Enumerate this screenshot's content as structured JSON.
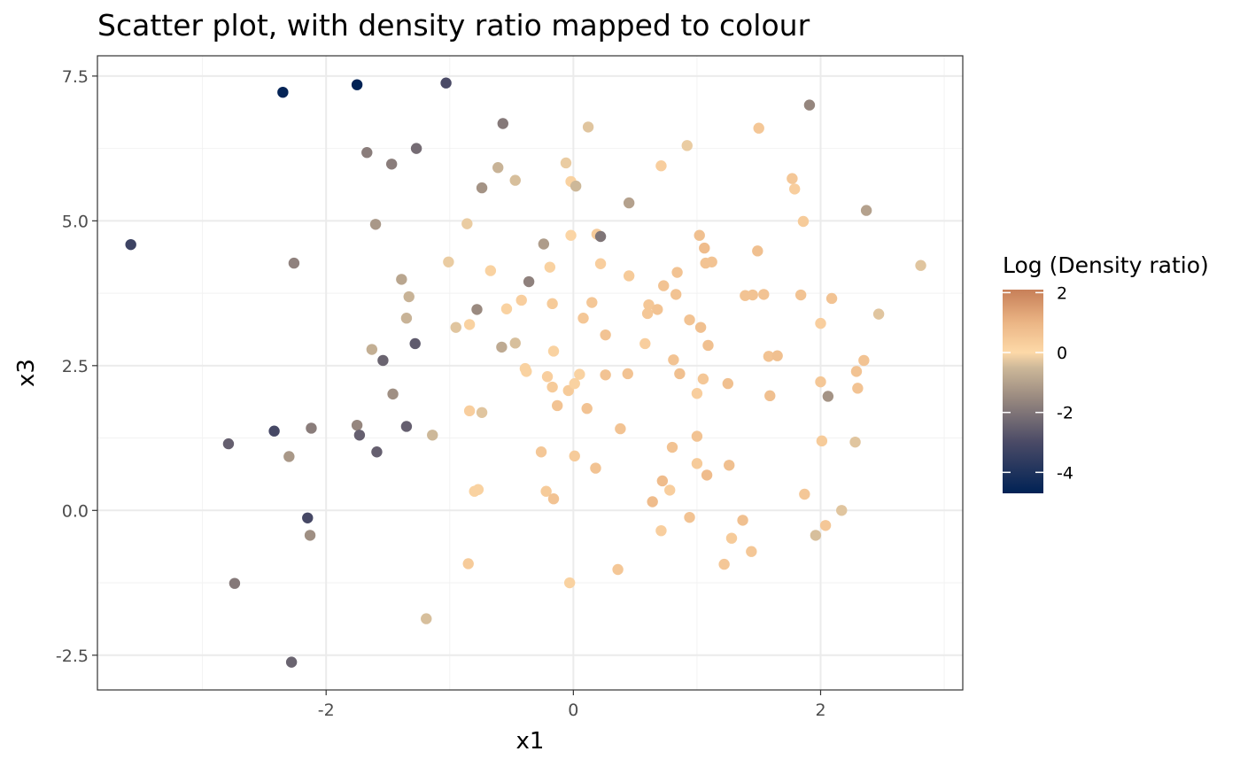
{
  "chart_data": {
    "type": "scatter",
    "title": "Scatter plot, with density ratio mapped to colour",
    "xlabel": "x1",
    "ylabel": "x3",
    "xlim": [
      -3.85,
      3.15
    ],
    "ylim": [
      -3.1,
      7.85
    ],
    "x_ticks": [
      -2,
      0,
      2
    ],
    "x_tick_labels": [
      "-2",
      "0",
      "2"
    ],
    "y_ticks": [
      -2.5,
      0.0,
      2.5,
      5.0,
      7.5
    ],
    "y_tick_labels": [
      "-2.5",
      "0.0",
      "2.5",
      "5.0",
      "7.5"
    ],
    "grid": true,
    "legend": {
      "title": "Log (Density ratio)",
      "placement": "right",
      "range": [
        -4.7,
        2.1
      ],
      "ticks": [
        2,
        0,
        -2,
        -4
      ],
      "tick_labels": [
        "2",
        "0",
        "-2",
        "-4"
      ],
      "colors": [
        {
          "value": -4.7,
          "color": "#002255"
        },
        {
          "value": -3.0,
          "color": "#4a4a66"
        },
        {
          "value": -1.5,
          "color": "#9a8a80"
        },
        {
          "value": -0.5,
          "color": "#cdb899"
        },
        {
          "value": 0.0,
          "color": "#fdd9a8"
        },
        {
          "value": 1.0,
          "color": "#ebb585"
        },
        {
          "value": 2.1,
          "color": "#c77f58"
        }
      ]
    },
    "points": [
      {
        "x": -2.35,
        "y": 7.22,
        "c": -4.6
      },
      {
        "x": -1.75,
        "y": 7.35,
        "c": -4.7
      },
      {
        "x": -1.03,
        "y": 7.38,
        "c": -3.0
      },
      {
        "x": -0.57,
        "y": 6.68,
        "c": -1.9
      },
      {
        "x": 0.12,
        "y": 6.62,
        "c": -0.3
      },
      {
        "x": 1.91,
        "y": 7.0,
        "c": -1.6
      },
      {
        "x": -1.67,
        "y": 6.18,
        "c": -1.8
      },
      {
        "x": -1.47,
        "y": 5.98,
        "c": -1.8
      },
      {
        "x": -1.27,
        "y": 6.25,
        "c": -2.2
      },
      {
        "x": -0.61,
        "y": 5.92,
        "c": -0.6
      },
      {
        "x": -0.47,
        "y": 5.7,
        "c": -0.4
      },
      {
        "x": -0.74,
        "y": 5.57,
        "c": -1.3
      },
      {
        "x": -0.06,
        "y": 6.0,
        "c": -0.2
      },
      {
        "x": -0.02,
        "y": 5.68,
        "c": 0.2
      },
      {
        "x": 0.02,
        "y": 5.6,
        "c": -0.5
      },
      {
        "x": 0.71,
        "y": 5.95,
        "c": 0.3
      },
      {
        "x": 0.92,
        "y": 6.3,
        "c": -0.2
      },
      {
        "x": 1.5,
        "y": 6.6,
        "c": 0.5
      },
      {
        "x": 1.77,
        "y": 5.73,
        "c": 0.5
      },
      {
        "x": 1.79,
        "y": 5.55,
        "c": 0.3
      },
      {
        "x": 0.45,
        "y": 5.31,
        "c": -1.0
      },
      {
        "x": 2.37,
        "y": 5.18,
        "c": -1.0
      },
      {
        "x": -3.58,
        "y": 4.59,
        "c": -3.3
      },
      {
        "x": -2.26,
        "y": 4.27,
        "c": -1.7
      },
      {
        "x": -1.6,
        "y": 4.94,
        "c": -1.2
      },
      {
        "x": -0.86,
        "y": 4.95,
        "c": -0.2
      },
      {
        "x": -0.24,
        "y": 4.6,
        "c": -1.1
      },
      {
        "x": -0.02,
        "y": 4.75,
        "c": 0.1
      },
      {
        "x": 0.19,
        "y": 4.77,
        "c": 0.4
      },
      {
        "x": 0.22,
        "y": 4.73,
        "c": -2.0
      },
      {
        "x": 1.86,
        "y": 4.99,
        "c": 0.4
      },
      {
        "x": 1.02,
        "y": 4.75,
        "c": 0.7
      },
      {
        "x": 1.06,
        "y": 4.53,
        "c": 0.8
      },
      {
        "x": 1.49,
        "y": 4.48,
        "c": 0.7
      },
      {
        "x": 1.07,
        "y": 4.27,
        "c": 0.6
      },
      {
        "x": 1.12,
        "y": 4.29,
        "c": 0.6
      },
      {
        "x": 2.81,
        "y": 4.23,
        "c": -0.3
      },
      {
        "x": -1.01,
        "y": 4.29,
        "c": -0.2
      },
      {
        "x": -0.67,
        "y": 4.14,
        "c": 0.2
      },
      {
        "x": -0.19,
        "y": 4.2,
        "c": 0.2
      },
      {
        "x": 0.22,
        "y": 4.26,
        "c": 0.3
      },
      {
        "x": 0.45,
        "y": 4.05,
        "c": 0.4
      },
      {
        "x": 0.84,
        "y": 4.11,
        "c": 0.6
      },
      {
        "x": -1.39,
        "y": 3.99,
        "c": -0.9
      },
      {
        "x": -1.33,
        "y": 3.69,
        "c": -0.6
      },
      {
        "x": -0.36,
        "y": 3.95,
        "c": -1.7
      },
      {
        "x": -0.42,
        "y": 3.63,
        "c": 0.3
      },
      {
        "x": -0.17,
        "y": 3.57,
        "c": 0.4
      },
      {
        "x": 0.15,
        "y": 3.59,
        "c": 0.5
      },
      {
        "x": 0.61,
        "y": 3.55,
        "c": 0.5
      },
      {
        "x": 0.73,
        "y": 3.88,
        "c": 0.6
      },
      {
        "x": 0.83,
        "y": 3.73,
        "c": 0.6
      },
      {
        "x": 1.39,
        "y": 3.71,
        "c": 0.6
      },
      {
        "x": 1.45,
        "y": 3.72,
        "c": 0.6
      },
      {
        "x": 1.54,
        "y": 3.73,
        "c": 0.6
      },
      {
        "x": 1.84,
        "y": 3.72,
        "c": 0.6
      },
      {
        "x": 2.09,
        "y": 3.66,
        "c": 0.6
      },
      {
        "x": 2.47,
        "y": 3.39,
        "c": -0.3
      },
      {
        "x": -1.35,
        "y": 3.32,
        "c": -0.6
      },
      {
        "x": -0.78,
        "y": 3.47,
        "c": -1.5
      },
      {
        "x": -0.54,
        "y": 3.48,
        "c": 0.2
      },
      {
        "x": -0.95,
        "y": 3.16,
        "c": -0.3
      },
      {
        "x": -0.84,
        "y": 3.21,
        "c": 0.2
      },
      {
        "x": 0.08,
        "y": 3.32,
        "c": 0.5
      },
      {
        "x": 0.6,
        "y": 3.4,
        "c": 0.5
      },
      {
        "x": 0.68,
        "y": 3.47,
        "c": 0.6
      },
      {
        "x": 0.94,
        "y": 3.29,
        "c": 0.6
      },
      {
        "x": 1.03,
        "y": 3.16,
        "c": 0.7
      },
      {
        "x": 2.0,
        "y": 3.23,
        "c": 0.3
      },
      {
        "x": -1.63,
        "y": 2.78,
        "c": -0.7
      },
      {
        "x": -1.28,
        "y": 2.88,
        "c": -2.6
      },
      {
        "x": -1.54,
        "y": 2.59,
        "c": -2.4
      },
      {
        "x": -0.58,
        "y": 2.82,
        "c": -0.8
      },
      {
        "x": -0.47,
        "y": 2.89,
        "c": -0.4
      },
      {
        "x": -0.16,
        "y": 2.75,
        "c": 0.2
      },
      {
        "x": 0.26,
        "y": 3.03,
        "c": 0.6
      },
      {
        "x": 0.58,
        "y": 2.88,
        "c": 0.3
      },
      {
        "x": 1.09,
        "y": 2.85,
        "c": 0.7
      },
      {
        "x": 0.81,
        "y": 2.6,
        "c": 0.6
      },
      {
        "x": 1.58,
        "y": 2.66,
        "c": 0.6
      },
      {
        "x": 1.65,
        "y": 2.67,
        "c": 0.7
      },
      {
        "x": 2.35,
        "y": 2.59,
        "c": 0.6
      },
      {
        "x": -0.39,
        "y": 2.45,
        "c": 0.2
      },
      {
        "x": -0.38,
        "y": 2.4,
        "c": 0.2
      },
      {
        "x": -0.21,
        "y": 2.31,
        "c": 0.3
      },
      {
        "x": 0.05,
        "y": 2.35,
        "c": 0.2
      },
      {
        "x": 0.26,
        "y": 2.34,
        "c": 0.6
      },
      {
        "x": 0.44,
        "y": 2.36,
        "c": 0.6
      },
      {
        "x": 0.86,
        "y": 2.36,
        "c": 0.7
      },
      {
        "x": 1.05,
        "y": 2.27,
        "c": 0.5
      },
      {
        "x": 2.29,
        "y": 2.4,
        "c": 0.6
      },
      {
        "x": -1.46,
        "y": 2.01,
        "c": -1.4
      },
      {
        "x": -0.17,
        "y": 2.13,
        "c": 0.4
      },
      {
        "x": -0.04,
        "y": 2.07,
        "c": 0.4
      },
      {
        "x": 0.01,
        "y": 2.19,
        "c": 0.2
      },
      {
        "x": 1.0,
        "y": 2.02,
        "c": 0.3
      },
      {
        "x": 1.25,
        "y": 2.19,
        "c": 0.7
      },
      {
        "x": 1.59,
        "y": 1.98,
        "c": 0.7
      },
      {
        "x": 2.0,
        "y": 2.22,
        "c": 0.5
      },
      {
        "x": 2.06,
        "y": 1.97,
        "c": -1.3
      },
      {
        "x": 2.3,
        "y": 2.11,
        "c": 0.6
      },
      {
        "x": -0.84,
        "y": 1.72,
        "c": 0.3
      },
      {
        "x": -0.74,
        "y": 1.69,
        "c": -0.3
      },
      {
        "x": -0.13,
        "y": 1.81,
        "c": 0.6
      },
      {
        "x": 0.11,
        "y": 1.76,
        "c": 0.6
      },
      {
        "x": -2.79,
        "y": 1.15,
        "c": -2.5
      },
      {
        "x": -2.42,
        "y": 1.37,
        "c": -3.1
      },
      {
        "x": -2.12,
        "y": 1.42,
        "c": -1.8
      },
      {
        "x": -1.75,
        "y": 1.47,
        "c": -1.6
      },
      {
        "x": -1.73,
        "y": 1.3,
        "c": -2.5
      },
      {
        "x": -1.35,
        "y": 1.45,
        "c": -2.5
      },
      {
        "x": -1.14,
        "y": 1.3,
        "c": -0.5
      },
      {
        "x": 0.38,
        "y": 1.41,
        "c": 0.6
      },
      {
        "x": 0.8,
        "y": 1.09,
        "c": 0.6
      },
      {
        "x": 1.0,
        "y": 1.28,
        "c": 0.6
      },
      {
        "x": 2.01,
        "y": 1.2,
        "c": 0.4
      },
      {
        "x": 2.28,
        "y": 1.18,
        "c": -0.3
      },
      {
        "x": -2.3,
        "y": 0.93,
        "c": -1.2
      },
      {
        "x": -1.59,
        "y": 1.01,
        "c": -2.5
      },
      {
        "x": -0.26,
        "y": 1.01,
        "c": 0.5
      },
      {
        "x": 0.01,
        "y": 0.94,
        "c": 0.4
      },
      {
        "x": 0.18,
        "y": 0.73,
        "c": 0.6
      },
      {
        "x": 1.0,
        "y": 0.81,
        "c": 0.4
      },
      {
        "x": 1.26,
        "y": 0.78,
        "c": 0.7
      },
      {
        "x": 1.08,
        "y": 0.61,
        "c": 0.8
      },
      {
        "x": 0.72,
        "y": 0.51,
        "c": 0.8
      },
      {
        "x": 0.78,
        "y": 0.35,
        "c": 0.3
      },
      {
        "x": -0.8,
        "y": 0.33,
        "c": 0.2
      },
      {
        "x": -0.77,
        "y": 0.36,
        "c": 0.2
      },
      {
        "x": -0.22,
        "y": 0.33,
        "c": 0.4
      },
      {
        "x": -0.16,
        "y": 0.2,
        "c": 0.6
      },
      {
        "x": 0.64,
        "y": 0.15,
        "c": 0.8
      },
      {
        "x": 1.87,
        "y": 0.28,
        "c": 0.5
      },
      {
        "x": -2.15,
        "y": -0.13,
        "c": -3.1
      },
      {
        "x": 0.94,
        "y": -0.12,
        "c": 0.6
      },
      {
        "x": 1.37,
        "y": -0.17,
        "c": 0.7
      },
      {
        "x": 2.17,
        "y": 0.0,
        "c": -0.3
      },
      {
        "x": -2.13,
        "y": -0.43,
        "c": -1.4
      },
      {
        "x": 0.71,
        "y": -0.35,
        "c": 0.3
      },
      {
        "x": 1.28,
        "y": -0.48,
        "c": 0.4
      },
      {
        "x": 1.96,
        "y": -0.43,
        "c": -0.4
      },
      {
        "x": 2.04,
        "y": -0.26,
        "c": 0.5
      },
      {
        "x": 1.44,
        "y": -0.71,
        "c": 0.5
      },
      {
        "x": -0.85,
        "y": -0.92,
        "c": 0.4
      },
      {
        "x": 1.22,
        "y": -0.93,
        "c": 0.5
      },
      {
        "x": 0.36,
        "y": -1.02,
        "c": 0.5
      },
      {
        "x": -0.03,
        "y": -1.25,
        "c": 0.2
      },
      {
        "x": -2.74,
        "y": -1.26,
        "c": -1.9
      },
      {
        "x": -1.19,
        "y": -1.87,
        "c": -0.4
      },
      {
        "x": -2.28,
        "y": -2.62,
        "c": -2.4
      }
    ]
  }
}
